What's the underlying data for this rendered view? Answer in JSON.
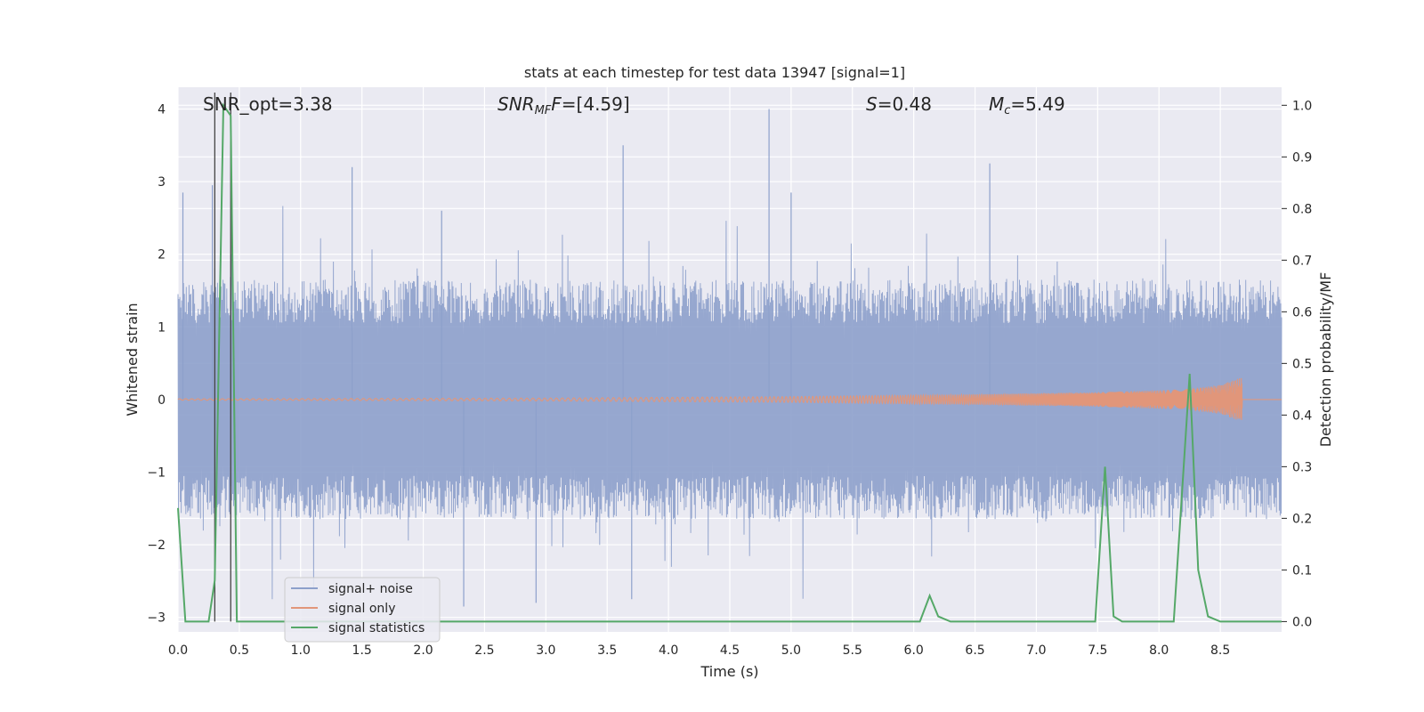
{
  "chart_data": {
    "type": "line",
    "title": "stats at each timestep for test data 13947 [signal=1]",
    "xlabel": "Time (s)",
    "ylabel_left": "Whitened strain",
    "ylabel_right": "Detection probability/MF",
    "xlim": [
      0.0,
      9.0
    ],
    "ylim_left": [
      -3.2,
      4.3
    ],
    "ylim_right": [
      -0.02,
      1.035
    ],
    "xticks": [
      0.0,
      0.5,
      1.0,
      1.5,
      2.0,
      2.5,
      3.0,
      3.5,
      4.0,
      4.5,
      5.0,
      5.5,
      6.0,
      6.5,
      7.0,
      7.5,
      8.0,
      8.5
    ],
    "xtick_labels": [
      "0.0",
      "0.5",
      "1.0",
      "1.5",
      "2.0",
      "2.5",
      "3.0",
      "3.5",
      "4.0",
      "4.5",
      "5.0",
      "5.5",
      "6.0",
      "6.5",
      "7.0",
      "7.5",
      "8.0",
      "8.5"
    ],
    "yticks_left": [
      -3,
      -2,
      -1,
      0,
      1,
      2,
      3,
      4
    ],
    "ytick_labels_left": [
      "−3",
      "−2",
      "−1",
      "0",
      "1",
      "2",
      "3",
      "4"
    ],
    "yticks_right": [
      0.0,
      0.1,
      0.2,
      0.3,
      0.4,
      0.5,
      0.6,
      0.7,
      0.8,
      0.9,
      1.0
    ],
    "ytick_labels_right": [
      "0.0",
      "0.1",
      "0.2",
      "0.3",
      "0.4",
      "0.5",
      "0.6",
      "0.7",
      "0.8",
      "0.9",
      "1.0"
    ],
    "grid": true,
    "background": "#eaeaf2",
    "annotations": {
      "snr_opt": "SNR_opt=3.38",
      "snr_mf_name": "SNR",
      "snr_mf_sub": "MF",
      "snr_mf_value": "=[4.59]",
      "s_name": "S",
      "s_value": "=0.48",
      "mc_name": "M",
      "mc_sub": "c",
      "mc_value": "=5.49"
    },
    "vertical_markers_x": [
      0.3,
      0.43
    ],
    "legend": {
      "placement": "lower-left",
      "entries": [
        {
          "label": "signal+ noise",
          "color": "#8da0cb"
        },
        {
          "label": "signal only",
          "color": "#e1967a"
        },
        {
          "label": "signal statistics",
          "color": "#55a868"
        }
      ]
    },
    "series": [
      {
        "name": "signal+ noise",
        "color": "#8da0cb",
        "axis": "left",
        "description_values": "Dense whitened noise samples roughly between -2.8 and 4.0",
        "envelope_upper_typical": 1.9,
        "envelope_lower_typical": -1.9,
        "peaks": [
          {
            "x": 0.04,
            "y": 2.85
          },
          {
            "x": 0.28,
            "y": 2.95
          },
          {
            "x": 1.42,
            "y": 3.2
          },
          {
            "x": 2.15,
            "y": 2.6
          },
          {
            "x": 3.63,
            "y": 3.5
          },
          {
            "x": 4.82,
            "y": 4.0
          },
          {
            "x": 5.0,
            "y": 2.85
          },
          {
            "x": 6.62,
            "y": 3.25
          },
          {
            "x": 2.33,
            "y": -2.85
          },
          {
            "x": 2.92,
            "y": -2.8
          },
          {
            "x": 3.7,
            "y": -2.75
          }
        ]
      },
      {
        "name": "signal only",
        "color": "#e1967a",
        "axis": "left",
        "description_values": "Chirp signal, near zero amplitude growing toward merger",
        "envelope": [
          {
            "x": 0.0,
            "y": 0.01
          },
          {
            "x": 3.0,
            "y": 0.02
          },
          {
            "x": 5.0,
            "y": 0.04
          },
          {
            "x": 6.5,
            "y": 0.07
          },
          {
            "x": 7.5,
            "y": 0.1
          },
          {
            "x": 8.2,
            "y": 0.14
          },
          {
            "x": 8.5,
            "y": 0.2
          },
          {
            "x": 8.63,
            "y": 0.28
          },
          {
            "x": 8.68,
            "y": 0.3
          }
        ]
      },
      {
        "name": "signal statistics",
        "color": "#55a868",
        "axis": "right",
        "x": [
          0.0,
          0.06,
          0.12,
          0.25,
          0.3,
          0.37,
          0.43,
          0.48,
          0.55,
          1.0,
          2.0,
          3.0,
          4.0,
          5.0,
          5.9,
          6.05,
          6.13,
          6.2,
          6.3,
          7.0,
          7.48,
          7.56,
          7.63,
          7.7,
          8.12,
          8.25,
          8.32,
          8.4,
          8.5,
          9.0
        ],
        "values": [
          0.22,
          0.0,
          0.0,
          0.0,
          0.08,
          1.0,
          0.98,
          0.0,
          0.0,
          0.0,
          0.0,
          0.0,
          0.0,
          0.0,
          0.0,
          0.0,
          0.05,
          0.01,
          0.0,
          0.0,
          0.0,
          0.3,
          0.01,
          0.0,
          0.0,
          0.48,
          0.1,
          0.01,
          0.0,
          0.0
        ]
      }
    ]
  }
}
